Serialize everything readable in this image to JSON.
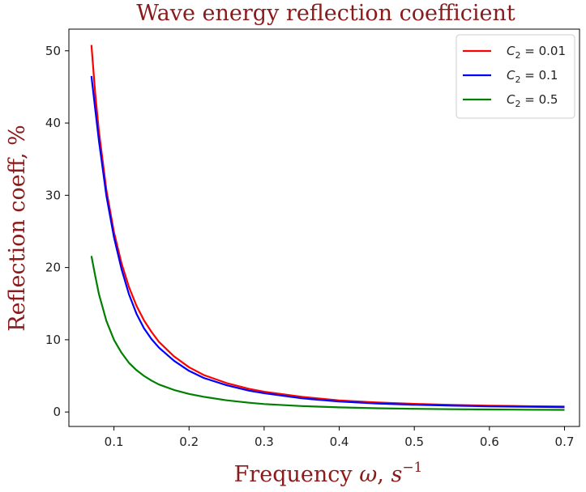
{
  "chart_data": {
    "type": "line",
    "title": "Wave energy reflection coefficient",
    "xlabel": "Frequency ω, s⁻¹",
    "xlabel_parts": {
      "text": "Frequency ",
      "symbol": "ω",
      "unit_base": "s",
      "unit_exp": "−1"
    },
    "ylabel": "Reflection coeff, %",
    "xlim": [
      0.04,
      0.72
    ],
    "ylim": [
      -2,
      53
    ],
    "xticks": [
      0.1,
      0.2,
      0.3,
      0.4,
      0.5,
      0.6,
      0.7
    ],
    "xtick_labels": [
      "0.1",
      "0.2",
      "0.3",
      "0.4",
      "0.5",
      "0.6",
      "0.7"
    ],
    "yticks": [
      0,
      10,
      20,
      30,
      40,
      50
    ],
    "ytick_labels": [
      "0",
      "10",
      "20",
      "30",
      "40",
      "50"
    ],
    "grid": false,
    "legend_position": "top-right",
    "x": [
      0.07,
      0.075,
      0.08,
      0.09,
      0.1,
      0.11,
      0.12,
      0.13,
      0.14,
      0.15,
      0.16,
      0.18,
      0.2,
      0.22,
      0.25,
      0.28,
      0.3,
      0.35,
      0.4,
      0.45,
      0.5,
      0.55,
      0.6,
      0.65,
      0.7
    ],
    "series": [
      {
        "name": "C₂ = 0.01",
        "legend_symbol": "C",
        "legend_sub": "2",
        "legend_value": " = 0.01",
        "color": "#ff0000",
        "values": [
          50.8,
          44.2,
          38.8,
          30.7,
          24.9,
          20.6,
          17.3,
          14.7,
          12.7,
          11.1,
          9.7,
          7.7,
          6.2,
          5.1,
          4.0,
          3.2,
          2.8,
          2.1,
          1.6,
          1.32,
          1.12,
          0.98,
          0.88,
          0.8,
          0.75
        ]
      },
      {
        "name": "C₂ = 0.1",
        "legend_symbol": "C",
        "legend_sub": "2",
        "legend_value": " = 0.1",
        "color": "#0000ff",
        "values": [
          46.5,
          42.0,
          37.5,
          29.9,
          24.2,
          19.8,
          16.3,
          13.6,
          11.6,
          10.1,
          8.9,
          7.1,
          5.7,
          4.7,
          3.7,
          2.95,
          2.6,
          1.9,
          1.45,
          1.18,
          1.0,
          0.88,
          0.79,
          0.72,
          0.67
        ]
      },
      {
        "name": "C₂ = 0.5",
        "legend_symbol": "C",
        "legend_sub": "2",
        "legend_value": " = 0.5",
        "color": "#008000",
        "values": [
          21.6,
          18.9,
          16.3,
          12.6,
          10.0,
          8.2,
          6.8,
          5.8,
          5.0,
          4.35,
          3.8,
          3.05,
          2.5,
          2.1,
          1.62,
          1.28,
          1.1,
          0.82,
          0.64,
          0.52,
          0.44,
          0.39,
          0.35,
          0.32,
          0.3
        ]
      }
    ]
  }
}
